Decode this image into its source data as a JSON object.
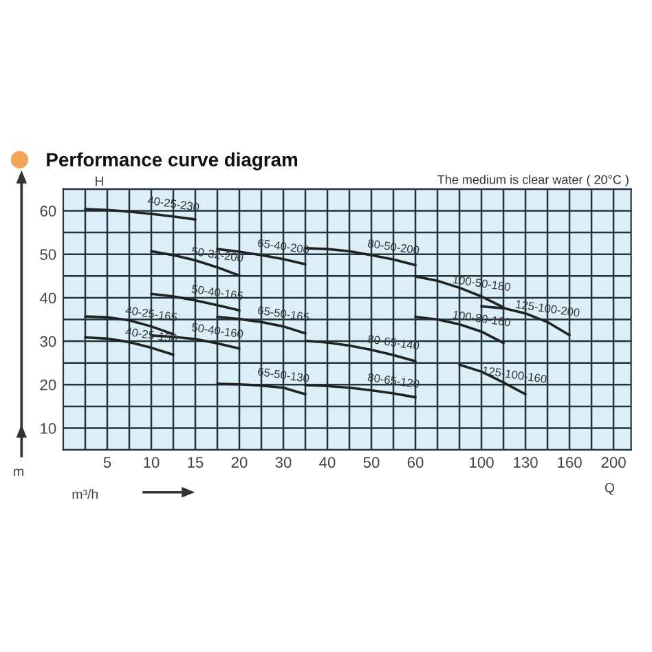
{
  "chart_data": {
    "type": "line",
    "title": "Performance curve diagram",
    "subtitle": "The medium is clear water ( 20°C )",
    "xlabel": "Q",
    "ylabel": "H",
    "annotations": [
      "m",
      "m³/h"
    ],
    "categories": [
      null,
      "5",
      null,
      "10",
      null,
      "15",
      null,
      "20",
      null,
      "30",
      null,
      "40",
      null,
      "50",
      null,
      "60",
      null,
      null,
      "100",
      null,
      "130",
      null,
      "160",
      null,
      "200"
    ],
    "ylim": [
      5,
      65
    ],
    "yticks": [
      {
        "value": 5,
        "label": null
      },
      10,
      {
        "value": 15,
        "label": null
      },
      20,
      {
        "value": 25,
        "label": null
      },
      30,
      {
        "value": 35,
        "label": null
      },
      40,
      {
        "value": 45,
        "label": null
      },
      50,
      {
        "value": 55,
        "label": null
      },
      60,
      {
        "value": 65,
        "label": null
      }
    ],
    "grid": true,
    "legend": false,
    "marker": "none",
    "line_style": "solid",
    "series": [
      {
        "name": "40-25-230",
        "color": "#222222",
        "values": [
          60.4,
          60.2,
          59.8,
          59.3,
          58.7,
          58.0,
          null,
          null,
          null,
          null,
          null,
          null,
          null,
          null,
          null,
          null,
          null,
          null,
          null,
          null,
          null,
          null,
          null,
          null,
          null
        ]
      },
      {
        "name": "50-32-200",
        "color": "#222222",
        "values": [
          null,
          null,
          null,
          50.7,
          49.8,
          48.6,
          47.0,
          45.1,
          null,
          null,
          null,
          null,
          null,
          null,
          null,
          null,
          null,
          null,
          null,
          null,
          null,
          null,
          null,
          null,
          null
        ]
      },
      {
        "name": "65-40-200",
        "color": "#222222",
        "values": [
          null,
          null,
          null,
          null,
          null,
          null,
          51.2,
          50.6,
          49.8,
          48.9,
          47.7,
          null,
          null,
          null,
          null,
          null,
          null,
          null,
          null,
          null,
          null,
          null,
          null,
          null,
          null
        ]
      },
      {
        "name": "80-50-200",
        "color": "#222222",
        "values": [
          null,
          null,
          null,
          null,
          null,
          null,
          null,
          null,
          null,
          null,
          51.4,
          51.2,
          50.7,
          49.8,
          48.8,
          47.5,
          null,
          null,
          null,
          null,
          null,
          null,
          null,
          null,
          null
        ]
      },
      {
        "name": "50-40-165",
        "color": "#222222",
        "values": [
          null,
          null,
          null,
          40.9,
          40.3,
          39.4,
          38.3,
          37.1,
          null,
          null,
          null,
          null,
          null,
          null,
          null,
          null,
          null,
          null,
          null,
          null,
          null,
          null,
          null,
          null,
          null
        ]
      },
      {
        "name": "65-50-165",
        "color": "#222222",
        "values": [
          null,
          null,
          null,
          null,
          null,
          null,
          35.6,
          35.1,
          34.4,
          33.4,
          31.8,
          null,
          null,
          null,
          null,
          null,
          null,
          null,
          null,
          null,
          null,
          null,
          null,
          null,
          null
        ]
      },
      {
        "name": "40-25-165",
        "color": "#222222",
        "values": [
          35.7,
          35.5,
          34.8,
          33.4,
          31.6,
          null,
          null,
          null,
          null,
          null,
          null,
          null,
          null,
          null,
          null,
          null,
          null,
          null,
          null,
          null,
          null,
          null,
          null,
          null,
          null
        ]
      },
      {
        "name": "50-40-160",
        "color": "#222222",
        "values": [
          null,
          null,
          null,
          31.3,
          31.0,
          30.5,
          29.5,
          28.3,
          null,
          null,
          null,
          null,
          null,
          null,
          null,
          null,
          null,
          null,
          null,
          null,
          null,
          null,
          null,
          null,
          null
        ]
      },
      {
        "name": "40-25-150",
        "color": "#222222",
        "values": [
          30.9,
          30.6,
          29.8,
          28.5,
          26.9,
          null,
          null,
          null,
          null,
          null,
          null,
          null,
          null,
          null,
          null,
          null,
          null,
          null,
          null,
          null,
          null,
          null,
          null,
          null,
          null
        ]
      },
      {
        "name": "65-50-130",
        "color": "#222222",
        "values": [
          null,
          null,
          null,
          null,
          null,
          null,
          20.2,
          20.1,
          19.8,
          19.3,
          17.8,
          null,
          null,
          null,
          null,
          null,
          null,
          null,
          null,
          null,
          null,
          null,
          null,
          null,
          null
        ]
      },
      {
        "name": "80-65-140",
        "color": "#222222",
        "values": [
          null,
          null,
          null,
          null,
          null,
          null,
          null,
          null,
          null,
          null,
          30.1,
          29.7,
          29.0,
          28.0,
          26.8,
          25.4,
          null,
          null,
          null,
          null,
          null,
          null,
          null,
          null,
          null
        ]
      },
      {
        "name": "80-65-120",
        "color": "#222222",
        "values": [
          null,
          null,
          null,
          null,
          null,
          null,
          null,
          null,
          null,
          null,
          19.9,
          19.7,
          19.3,
          18.7,
          18.0,
          17.1,
          null,
          null,
          null,
          null,
          null,
          null,
          null,
          null,
          null
        ]
      },
      {
        "name": "100-50-180",
        "color": "#222222",
        "values": [
          null,
          null,
          null,
          null,
          null,
          null,
          null,
          null,
          null,
          null,
          null,
          null,
          null,
          null,
          null,
          44.9,
          43.9,
          42.3,
          40.3,
          37.8,
          null,
          null,
          null,
          null,
          null
        ]
      },
      {
        "name": "125-100-200",
        "color": "#222222",
        "values": [
          null,
          null,
          null,
          null,
          null,
          null,
          null,
          null,
          null,
          null,
          null,
          null,
          null,
          null,
          null,
          null,
          null,
          null,
          38.0,
          37.6,
          36.4,
          34.4,
          31.4,
          null,
          null
        ]
      },
      {
        "name": "100-80-160",
        "color": "#222222",
        "values": [
          null,
          null,
          null,
          null,
          null,
          null,
          null,
          null,
          null,
          null,
          null,
          null,
          null,
          null,
          null,
          35.6,
          35.0,
          33.9,
          32.2,
          29.6,
          null,
          null,
          null,
          null,
          null
        ]
      },
      {
        "name": "125-100-160",
        "color": "#222222",
        "values": [
          null,
          null,
          null,
          null,
          null,
          null,
          null,
          null,
          null,
          null,
          null,
          null,
          null,
          null,
          null,
          null,
          null,
          24.6,
          23.0,
          20.5,
          17.8,
          null,
          null,
          null,
          null
        ]
      }
    ]
  }
}
